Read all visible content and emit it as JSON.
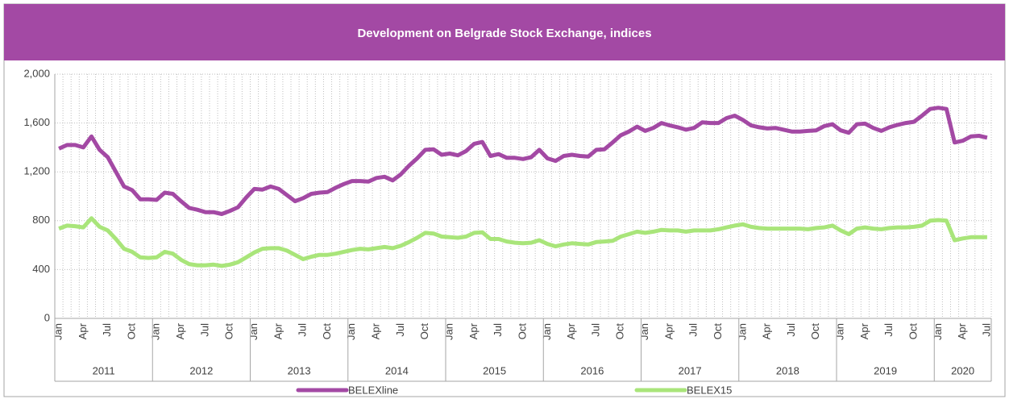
{
  "chart_data": {
    "type": "line",
    "title": "Development on Belgrade Stock Exchange, indices",
    "categories": [
      "Jan",
      null,
      null,
      "Apr",
      null,
      null,
      "Jul",
      null,
      null,
      "Oct",
      null,
      null,
      "Jan",
      null,
      null,
      "Apr",
      null,
      null,
      "Jul",
      null,
      null,
      "Oct",
      null,
      null,
      "Jan",
      null,
      null,
      "Apr",
      null,
      null,
      "Jul",
      null,
      null,
      "Oct",
      null,
      null,
      "Jan",
      null,
      null,
      "Apr",
      null,
      null,
      "Jul",
      null,
      null,
      "Oct",
      null,
      null,
      "Jan",
      null,
      null,
      "Apr",
      null,
      null,
      "Jul",
      null,
      null,
      "Oct",
      null,
      null,
      "Jan",
      null,
      null,
      "Apr",
      null,
      null,
      "Jul",
      null,
      null,
      "Oct",
      null,
      null,
      "Jan",
      null,
      null,
      "Apr",
      null,
      null,
      "Jul",
      null,
      null,
      "Oct",
      null,
      null,
      "Jan",
      null,
      null,
      "Apr",
      null,
      null,
      "Jul",
      null,
      null,
      "Oct",
      null,
      null,
      "Jan",
      null,
      null,
      "Apr",
      null,
      null,
      "Jul",
      null,
      null,
      "Oct",
      null,
      null,
      "Jan",
      null,
      null,
      "Apr",
      null,
      null,
      "Jul"
    ],
    "years": [
      "2011",
      "2012",
      "2013",
      "2014",
      "2015",
      "2016",
      "2017",
      "2018",
      "2019",
      "2020"
    ],
    "series": [
      {
        "name": "BELEXline",
        "color": "#a349a4",
        "values": [
          1390,
          1420,
          1420,
          1400,
          1490,
          1380,
          1320,
          1200,
          1080,
          1050,
          975,
          975,
          970,
          1030,
          1020,
          960,
          905,
          890,
          870,
          870,
          855,
          880,
          910,
          990,
          1060,
          1055,
          1080,
          1060,
          1010,
          960,
          985,
          1020,
          1030,
          1035,
          1070,
          1100,
          1125,
          1125,
          1120,
          1150,
          1160,
          1130,
          1180,
          1250,
          1310,
          1380,
          1385,
          1340,
          1350,
          1335,
          1370,
          1430,
          1445,
          1330,
          1345,
          1315,
          1315,
          1305,
          1320,
          1380,
          1310,
          1290,
          1330,
          1340,
          1330,
          1325,
          1380,
          1385,
          1440,
          1500,
          1530,
          1570,
          1535,
          1560,
          1600,
          1580,
          1565,
          1545,
          1560,
          1605,
          1600,
          1600,
          1640,
          1660,
          1625,
          1580,
          1565,
          1555,
          1560,
          1545,
          1530,
          1530,
          1535,
          1540,
          1575,
          1590,
          1540,
          1520,
          1590,
          1595,
          1560,
          1535,
          1565,
          1585,
          1600,
          1610,
          1660,
          1715,
          1725,
          1715,
          1440,
          1455,
          1490,
          1495,
          1480
        ]
      },
      {
        "name": "BELEX15",
        "color": "#a9e57a",
        "values": [
          735,
          760,
          755,
          745,
          820,
          750,
          720,
          650,
          570,
          545,
          500,
          495,
          500,
          545,
          530,
          480,
          445,
          435,
          435,
          440,
          430,
          440,
          460,
          500,
          540,
          570,
          575,
          575,
          555,
          520,
          485,
          505,
          520,
          520,
          530,
          545,
          560,
          570,
          565,
          575,
          585,
          575,
          595,
          625,
          660,
          700,
          695,
          670,
          665,
          660,
          670,
          700,
          705,
          650,
          650,
          630,
          620,
          615,
          620,
          640,
          610,
          590,
          605,
          615,
          610,
          605,
          625,
          630,
          635,
          670,
          690,
          710,
          700,
          710,
          725,
          720,
          720,
          710,
          720,
          720,
          720,
          730,
          745,
          760,
          770,
          750,
          740,
          735,
          735,
          735,
          735,
          735,
          730,
          740,
          745,
          760,
          720,
          690,
          735,
          745,
          735,
          730,
          740,
          745,
          745,
          750,
          760,
          800,
          805,
          800,
          640,
          655,
          665,
          665,
          665
        ]
      }
    ],
    "ylim": [
      0,
      2000
    ],
    "yticks": [
      0,
      400,
      800,
      {
        "value": 1200,
        "label": "1,200"
      },
      {
        "value": 1600,
        "label": "1,600"
      },
      {
        "value": 2000,
        "label": "2,000"
      }
    ],
    "grid": true
  }
}
